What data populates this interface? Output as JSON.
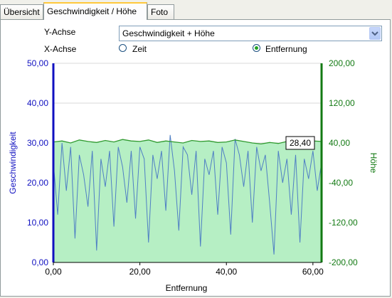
{
  "tabs": [
    {
      "label": "Übersicht"
    },
    {
      "label": "Geschwindigkeit / Höhe"
    },
    {
      "label": "Foto"
    }
  ],
  "controls": {
    "y_axis_label": "Y-Achse",
    "y_axis_value": "Geschwindigkeit + Höhe",
    "x_axis_label": "X-Achse",
    "x_option_time": "Zeit",
    "x_option_distance": "Entfernung",
    "x_selected": "Entfernung"
  },
  "colors": {
    "speed_line": "#4f7fc4",
    "speed_axis": "#1010c0",
    "altitude_line": "#2f9a2f",
    "altitude_fill": "#b6efc4",
    "altitude_axis": "#137a13"
  },
  "chart_data": {
    "type": "area",
    "xlabel": "Entfernung",
    "ylabel": "Geschwindigkeit",
    "y2label": "Höhe",
    "xlim": [
      0,
      62
    ],
    "ylim": [
      0,
      50
    ],
    "y2lim": [
      -200,
      200
    ],
    "x_ticks": [
      "0,00",
      "20,00",
      "40,00",
      "60,00"
    ],
    "y_ticks": [
      "0,00",
      "10,00",
      "20,00",
      "30,00",
      "40,00",
      "50,00"
    ],
    "y2_ticks": [
      "-200,00",
      "-120,00",
      "-40,00",
      "40,00",
      "120,00",
      "200,00"
    ],
    "cursor_label": "28,40",
    "grid": true,
    "series": [
      {
        "name": "Geschwindigkeit",
        "axis": "left",
        "x": [
          0,
          1,
          2,
          3,
          4,
          5,
          6,
          7,
          8,
          9,
          10,
          11,
          12,
          13,
          14,
          15,
          16,
          17,
          18,
          19,
          20,
          21,
          22,
          23,
          24,
          25,
          26,
          27,
          28,
          29,
          30,
          31,
          32,
          33,
          34,
          35,
          36,
          37,
          38,
          39,
          40,
          41,
          42,
          43,
          44,
          45,
          46,
          47,
          48,
          49,
          50,
          51,
          52,
          53,
          54,
          55,
          56,
          57,
          58,
          59,
          60,
          61,
          62
        ],
        "values": [
          25,
          12,
          30,
          18,
          29,
          6,
          27,
          22,
          14,
          28,
          3,
          26,
          19,
          28,
          9,
          29,
          24,
          15,
          28,
          11,
          29,
          26,
          5,
          27,
          21,
          28,
          13,
          32,
          23,
          8,
          29,
          27,
          17,
          28,
          4,
          26,
          22,
          28,
          12,
          29,
          25,
          7,
          31,
          27,
          19,
          28,
          10,
          29,
          23,
          27,
          15,
          2,
          28,
          20,
          26,
          12,
          27,
          5,
          26,
          21,
          28,
          18,
          25
        ]
      },
      {
        "name": "Höhe",
        "axis": "right",
        "x": [
          0,
          2,
          4,
          6,
          8,
          10,
          12,
          14,
          16,
          18,
          20,
          22,
          24,
          26,
          28,
          30,
          32,
          34,
          36,
          38,
          40,
          42,
          44,
          46,
          48,
          50,
          52,
          54,
          56,
          58,
          60,
          62
        ],
        "values": [
          42,
          44,
          40,
          46,
          43,
          41,
          45,
          42,
          47,
          44,
          43,
          46,
          41,
          44,
          42,
          40,
          45,
          43,
          44,
          41,
          42,
          46,
          43,
          40,
          38,
          41,
          39,
          43,
          45,
          42,
          44,
          43
        ]
      }
    ]
  }
}
